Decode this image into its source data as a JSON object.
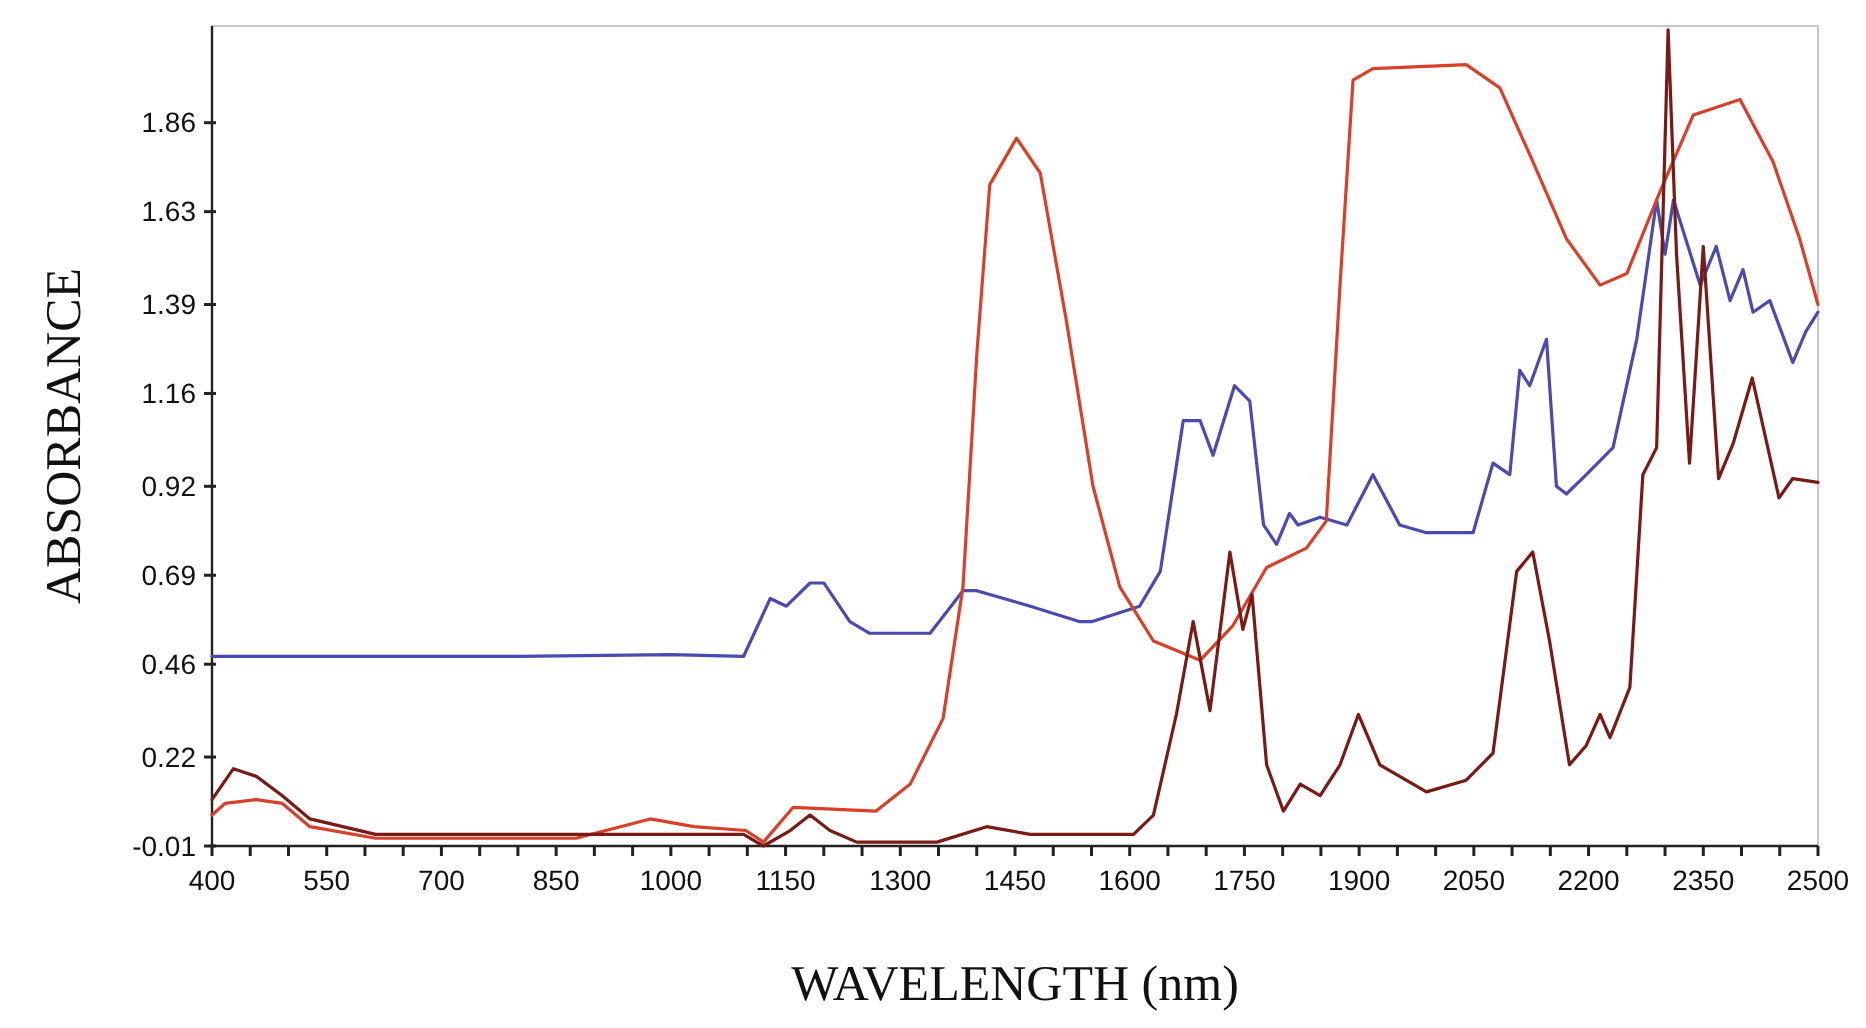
{
  "chart_data": {
    "type": "line",
    "xlabel": "WAVELENGTH (nm)",
    "ylabel": "ABSORBANCE",
    "xlim": [
      400,
      2500
    ],
    "ylim": [
      -0.01,
      2.11
    ],
    "xticks": [
      400,
      {
        "value": 450,
        "label": null
      },
      {
        "value": 500,
        "label": null
      },
      550,
      {
        "value": 600,
        "label": null
      },
      {
        "value": 650,
        "label": null
      },
      700,
      {
        "value": 750,
        "label": null
      },
      {
        "value": 800,
        "label": null
      },
      850,
      {
        "value": 900,
        "label": null
      },
      {
        "value": 950,
        "label": null
      },
      1000,
      {
        "value": 1050,
        "label": null
      },
      {
        "value": 1100,
        "label": null
      },
      1150,
      {
        "value": 1200,
        "label": null
      },
      {
        "value": 1250,
        "label": null
      },
      1300,
      {
        "value": 1350,
        "label": null
      },
      {
        "value": 1400,
        "label": null
      },
      1450,
      {
        "value": 1500,
        "label": null
      },
      {
        "value": 1550,
        "label": null
      },
      1600,
      {
        "value": 1650,
        "label": null
      },
      {
        "value": 1700,
        "label": null
      },
      1750,
      {
        "value": 1800,
        "label": null
      },
      {
        "value": 1850,
        "label": null
      },
      1900,
      {
        "value": 1950,
        "label": null
      },
      {
        "value": 2000,
        "label": null
      },
      2050,
      {
        "value": 2100,
        "label": null
      },
      {
        "value": 2150,
        "label": null
      },
      2200,
      {
        "value": 2250,
        "label": null
      },
      {
        "value": 2300,
        "label": null
      },
      2350,
      {
        "value": 2400,
        "label": null
      },
      {
        "value": 2450,
        "label": null
      },
      2500
    ],
    "yticks": [
      -0.01,
      0.22,
      0.46,
      0.69,
      0.92,
      1.16,
      1.39,
      1.63,
      1.86
    ],
    "grid": false,
    "marker": "none",
    "line_style": "solid",
    "series": [
      {
        "color": "#4a4ab0",
        "x": [
          400,
          600,
          800,
          1000,
          1095,
          1130,
          1151,
          1182,
          1200,
          1234,
          1260,
          1339,
          1382,
          1400,
          1470,
          1535,
          1550,
          1613,
          1640,
          1670,
          1692,
          1709,
          1737,
          1757,
          1775,
          1792,
          1809,
          1820,
          1849,
          1884,
          1918,
          1953,
          1988,
          2049,
          2075,
          2097,
          2110,
          2123,
          2145,
          2158,
          2171,
          2197,
          2232,
          2263,
          2289,
          2300,
          2311,
          2346,
          2367,
          2385,
          2402,
          2415,
          2437,
          2467,
          2484,
          2500
        ],
        "values": [
          0.48,
          0.48,
          0.48,
          0.485,
          0.48,
          0.63,
          0.61,
          0.67,
          0.67,
          0.57,
          0.54,
          0.54,
          0.65,
          0.65,
          0.61,
          0.57,
          0.57,
          0.61,
          0.7,
          1.09,
          1.09,
          1.0,
          1.18,
          1.14,
          0.82,
          0.77,
          0.85,
          0.82,
          0.84,
          0.82,
          0.95,
          0.82,
          0.8,
          0.8,
          0.98,
          0.95,
          1.22,
          1.18,
          1.3,
          0.92,
          0.9,
          0.95,
          1.02,
          1.3,
          1.66,
          1.52,
          1.66,
          1.44,
          1.54,
          1.4,
          1.48,
          1.37,
          1.4,
          1.24,
          1.32,
          1.37
        ]
      },
      {
        "color": "#d8402a",
        "x": [
          400,
          417,
          458,
          492,
          528,
          614,
          876,
          973,
          1030,
          1098,
          1121,
          1160,
          1268,
          1313,
          1356,
          1382,
          1400,
          1417,
          1452,
          1483,
          1517,
          1552,
          1587,
          1631,
          1692,
          1735,
          1779,
          1831,
          1857,
          1875,
          1892,
          1918,
          2040,
          2084,
          2127,
          2171,
          2215,
          2250,
          2293,
          2337,
          2398,
          2441,
          2476,
          2500
        ],
        "values": [
          0.07,
          0.1,
          0.11,
          0.1,
          0.04,
          0.01,
          0.01,
          0.06,
          0.04,
          0.03,
          0.0,
          0.09,
          0.08,
          0.15,
          0.32,
          0.66,
          1.26,
          1.7,
          1.82,
          1.73,
          1.35,
          0.92,
          0.66,
          0.52,
          0.47,
          0.56,
          0.71,
          0.76,
          0.83,
          1.44,
          1.97,
          2.0,
          2.01,
          1.95,
          1.76,
          1.56,
          1.44,
          1.47,
          1.68,
          1.88,
          1.92,
          1.76,
          1.56,
          1.39
        ]
      },
      {
        "color": "#7a1a14",
        "x": [
          400,
          428,
          458,
          492,
          528,
          614,
          1095,
          1121,
          1156,
          1182,
          1208,
          1243,
          1348,
          1413,
          1470,
          1605,
          1631,
          1661,
          1683,
          1705,
          1731,
          1748,
          1760,
          1779,
          1801,
          1823,
          1849,
          1875,
          1899,
          1927,
          1988,
          2040,
          2075,
          2106,
          2127,
          2149,
          2175,
          2197,
          2215,
          2228,
          2254,
          2271,
          2289,
          2304,
          2315,
          2332,
          2350,
          2370,
          2389,
          2414,
          2449,
          2467,
          2500
        ],
        "values": [
          0.11,
          0.19,
          0.17,
          0.12,
          0.06,
          0.02,
          0.02,
          -0.01,
          0.03,
          0.07,
          0.03,
          0.0,
          0.0,
          0.04,
          0.02,
          0.02,
          0.07,
          0.33,
          0.57,
          0.34,
          0.75,
          0.55,
          0.64,
          0.2,
          0.08,
          0.15,
          0.12,
          0.2,
          0.33,
          0.2,
          0.13,
          0.16,
          0.23,
          0.7,
          0.75,
          0.52,
          0.2,
          0.25,
          0.33,
          0.27,
          0.4,
          0.95,
          1.02,
          2.1,
          1.52,
          0.98,
          1.54,
          0.94,
          1.03,
          1.2,
          0.89,
          0.94,
          0.93
        ]
      }
    ]
  }
}
